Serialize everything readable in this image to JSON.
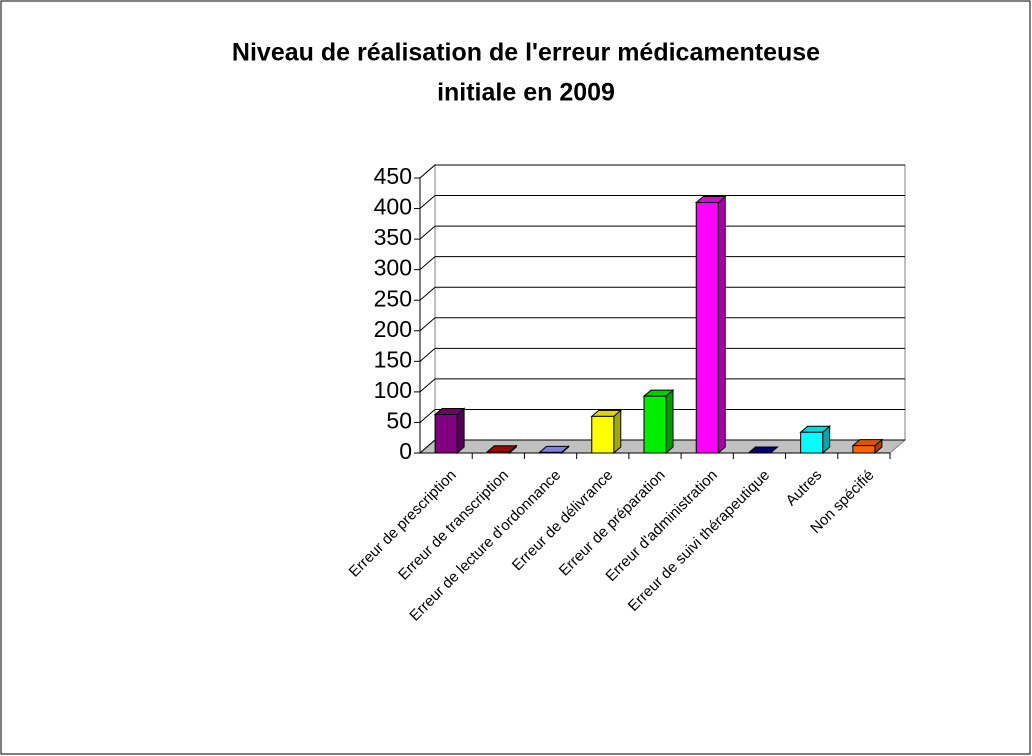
{
  "chart_data": {
    "type": "bar",
    "title": [
      "Niveau de réalisation de l'erreur médicamenteuse",
      "initiale en 2009"
    ],
    "categories": [
      "Erreur de prescription",
      "Erreur de transcription",
      "Erreur de lecture d'ordonnance",
      "Erreur de délivrance",
      "Erreur de préparation",
      "Erreur d'administration",
      "Erreur de suivi thérapeutique",
      "Autres",
      "Non spécifié"
    ],
    "values": [
      63,
      2,
      1,
      60,
      93,
      410,
      0,
      34,
      12
    ],
    "colors": [
      "#800080",
      "#c00000",
      "#9999ff",
      "#ffff00",
      "#00ee00",
      "#ff00ff",
      "#000080",
      "#00ffff",
      "#ff6600"
    ],
    "ylim": [
      0,
      450
    ],
    "yticks": [
      0,
      50,
      100,
      150,
      200,
      250,
      300,
      350,
      400,
      450
    ],
    "grid": true
  }
}
